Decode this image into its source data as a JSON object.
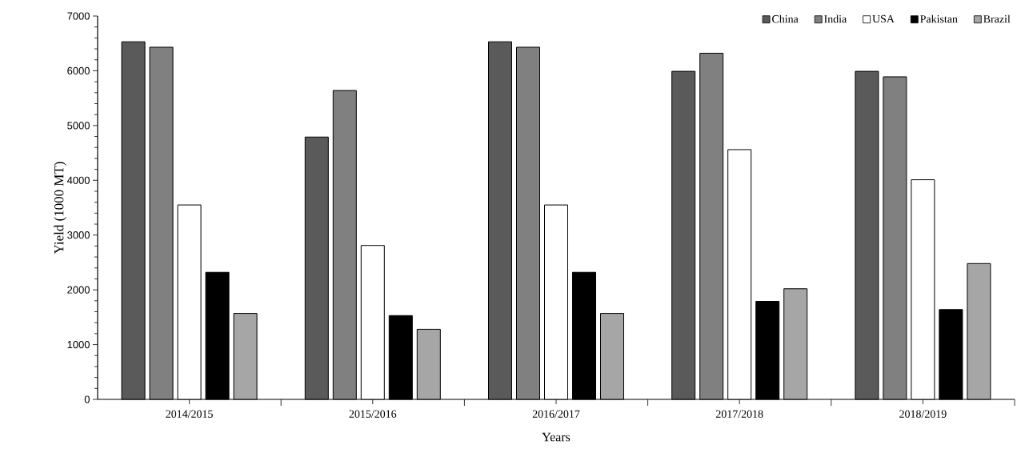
{
  "chart_data": {
    "type": "bar",
    "xlabel": "Years",
    "ylabel": "Yield (1000 MT)",
    "categories": [
      "2014/2015",
      "2015/2016",
      "2016/2017",
      "2017/2018",
      "2018/2019"
    ],
    "series": [
      {
        "name": "China",
        "color": "#5a5a5a",
        "values": [
          6530,
          4790,
          6530,
          5990,
          5990
        ]
      },
      {
        "name": "India",
        "color": "#808080",
        "values": [
          6430,
          5640,
          6430,
          6320,
          5890
        ]
      },
      {
        "name": "USA",
        "color": "#ffffff",
        "values": [
          3550,
          2810,
          3550,
          4560,
          4010
        ]
      },
      {
        "name": "Pakistan",
        "color": "#000000",
        "values": [
          2320,
          1530,
          2320,
          1790,
          1640
        ]
      },
      {
        "name": "Brazil",
        "color": "#a6a6a6",
        "values": [
          1570,
          1280,
          1570,
          2020,
          2480
        ]
      }
    ],
    "ylim": [
      0,
      7000
    ],
    "yticks": [
      0,
      1000,
      2000,
      3000,
      4000,
      5000,
      6000,
      7000
    ],
    "legend": "top right"
  }
}
